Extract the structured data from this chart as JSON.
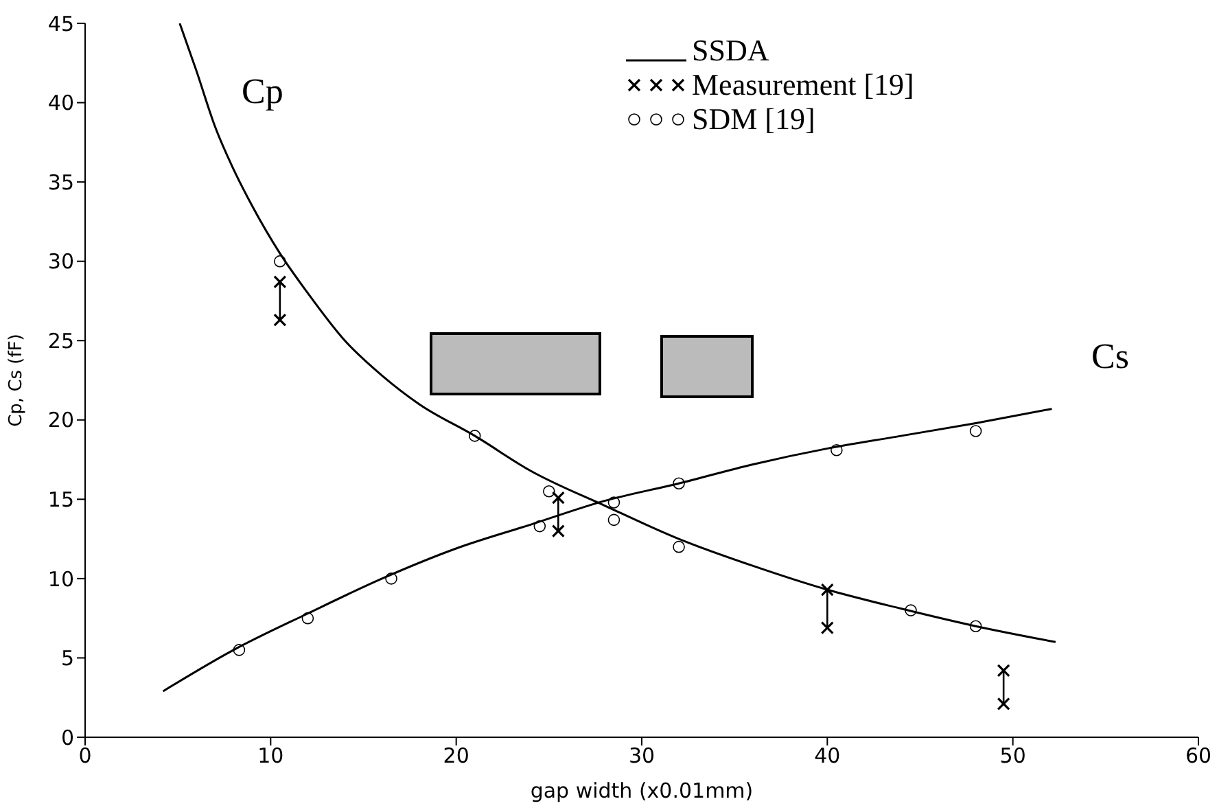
{
  "chart_data": {
    "type": "line",
    "xlabel": "gap width (x0.01mm)",
    "ylabel": "Cp, Cs (fF)",
    "xlim": [
      0,
      60
    ],
    "xticks": [
      0,
      10,
      20,
      30,
      40,
      50,
      60
    ],
    "ylim": [
      0,
      45
    ],
    "yticks": [
      0,
      5,
      10,
      15,
      20,
      25,
      30,
      35,
      40,
      45
    ],
    "grid": false,
    "legend": "top right",
    "series": [
      {
        "name": "SSDA",
        "marker": "none",
        "line_style": "solid",
        "color": "#000000",
        "x": [
          5.1,
          6,
          7,
          8,
          9,
          10.5,
          12,
          14,
          16,
          18,
          21,
          24,
          28,
          32,
          36,
          40,
          44,
          48,
          52.3
        ],
        "values": [
          45,
          42,
          38.5,
          35.8,
          33.5,
          30.5,
          28,
          25,
          22.8,
          21,
          19,
          16.8,
          14.6,
          12.5,
          10.8,
          9.3,
          8.1,
          7,
          6
        ]
      },
      {
        "marker": "none",
        "line_style": "solid",
        "color": "#000000",
        "x": [
          4.2,
          8,
          12,
          16,
          20,
          24,
          28,
          32,
          36,
          40,
          44,
          48,
          52.1
        ],
        "values": [
          2.9,
          5.5,
          7.8,
          10,
          11.9,
          13.4,
          14.9,
          16,
          17.2,
          18.2,
          19,
          19.8,
          20.7
        ]
      },
      {
        "name": "Measurement [19]",
        "type": "scatter",
        "marker": "cross",
        "color": "#000000",
        "x": [
          10.5,
          10.5,
          25.5,
          25.5,
          40,
          40,
          49.5,
          49.5
        ],
        "values": [
          28.7,
          26.3,
          15.1,
          13,
          9.3,
          6.9,
          4.2,
          2.1
        ],
        "errors": [
          [
            26.3,
            28.7
          ],
          null,
          [
            13,
            15.1
          ],
          null,
          [
            6.9,
            9.3
          ],
          null,
          [
            2.1,
            4.2
          ],
          null
        ]
      },
      {
        "name": "SDM [19]",
        "type": "scatter",
        "marker": "circle",
        "color": "#000000",
        "x": [
          10.5,
          8.3,
          12,
          16.5,
          21,
          24.5,
          25,
          28.5,
          28.5,
          32,
          32,
          40.5,
          44.5,
          48,
          48
        ],
        "values": [
          30,
          5.5,
          7.5,
          10,
          19,
          13.3,
          15.5,
          14.8,
          13.7,
          16,
          12,
          18.1,
          8,
          19.3,
          7
        ]
      }
    ],
    "annotations": [
      "Cp",
      "Cs"
    ]
  }
}
